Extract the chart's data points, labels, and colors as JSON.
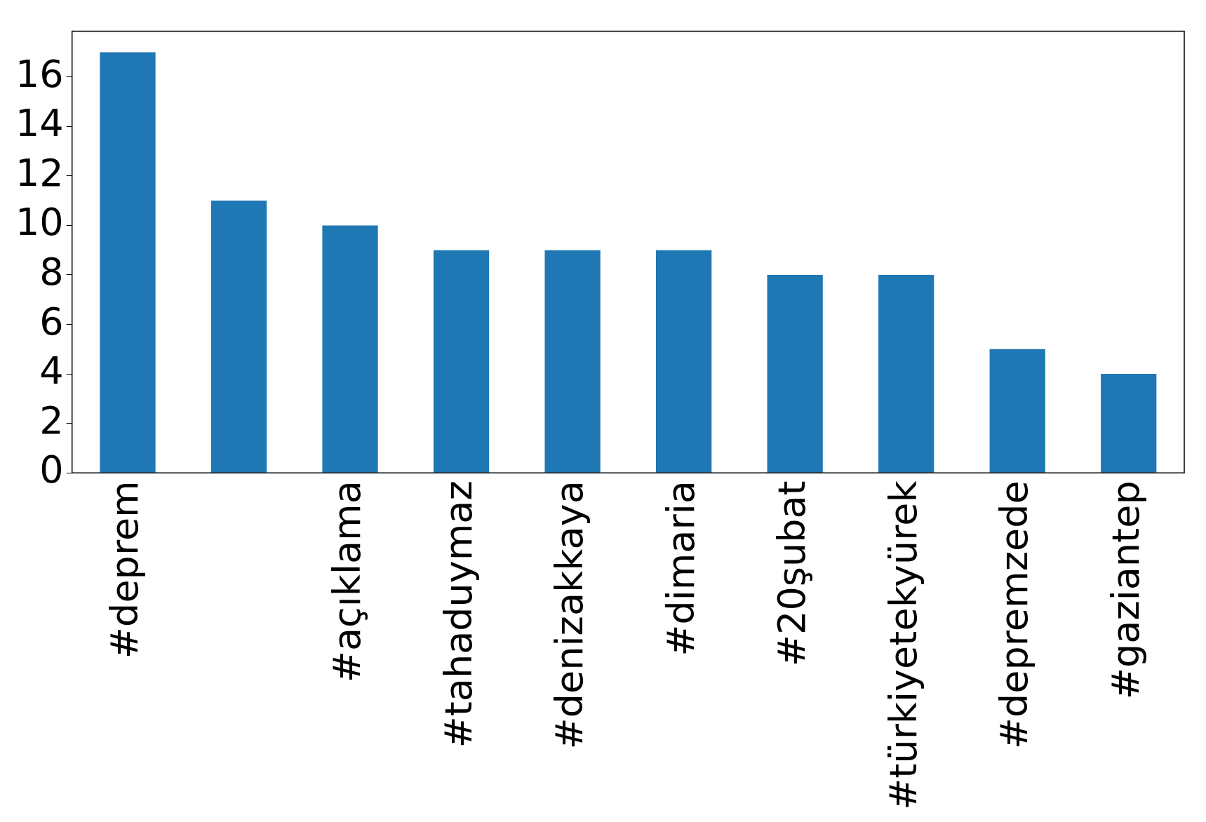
{
  "chart_data": {
    "type": "bar",
    "categories": [
      "#deprem",
      null,
      "#açıklama",
      "#tahaduymaz",
      "#denizakkaya",
      "#dimaria",
      "#20şubat",
      "#türkiyetekyürek",
      "#depremzede",
      "#gaziantep"
    ],
    "values": [
      17,
      11,
      10,
      9,
      9,
      9,
      8,
      8,
      5,
      4
    ],
    "color": "#1f77b4",
    "ylim": [
      0,
      17.85
    ],
    "yticks": [
      0,
      2,
      4,
      6,
      8,
      10,
      12,
      14,
      16
    ],
    "grid": false,
    "legend": false
  }
}
